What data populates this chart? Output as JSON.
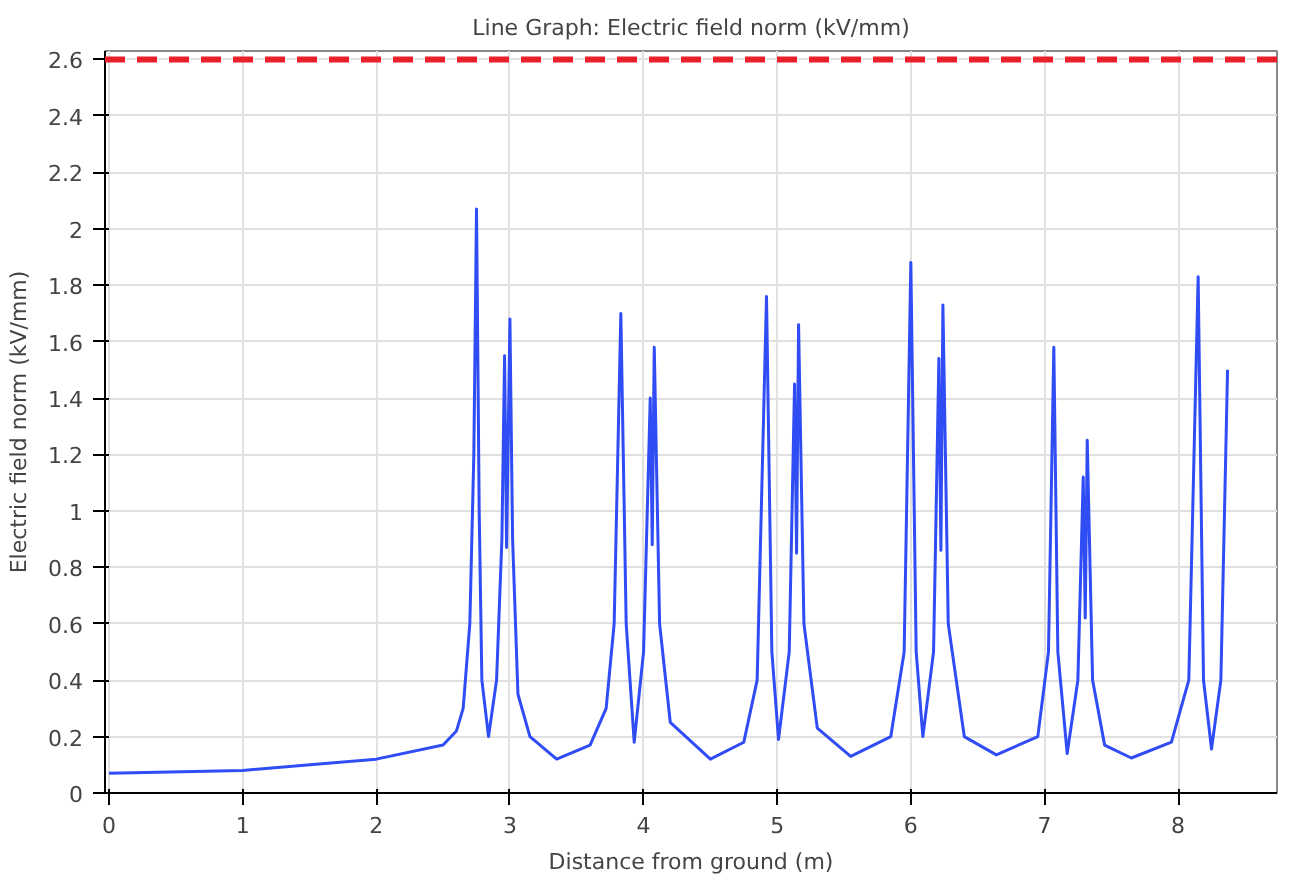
{
  "chart_data": {
    "type": "line",
    "title": "Line Graph: Electric field norm (kV/mm)",
    "xlabel": "Distance from ground (m)",
    "ylabel": "Electric field norm (kV/mm)",
    "xlim": [
      -0.03,
      8.74
    ],
    "ylim": [
      0,
      2.63
    ],
    "xticks": [
      0,
      1,
      2,
      3,
      4,
      5,
      6,
      7,
      8
    ],
    "yticks": [
      0,
      0.2,
      0.4,
      0.6,
      0.8,
      1,
      1.2,
      1.4,
      1.6,
      1.8,
      2,
      2.2,
      2.4,
      2.6
    ],
    "grid": true,
    "line_style": "solid",
    "ref_lines": [
      {
        "axis": "y",
        "value": 2.6,
        "color": "#e8202a",
        "line_style": "dashed"
      }
    ],
    "series": [
      {
        "color": "#2f4cf5",
        "x": [
          0,
          1,
          2,
          2.5,
          2.6,
          2.65,
          2.7,
          2.73,
          2.75,
          2.77,
          2.79,
          2.84,
          2.9,
          2.94,
          2.96,
          2.975,
          3.0,
          3.02,
          3.06,
          3.15,
          3.35,
          3.6,
          3.72,
          3.78,
          3.83,
          3.87,
          3.93,
          4.0,
          4.05,
          4.065,
          4.08,
          4.12,
          4.2,
          4.5,
          4.75,
          4.85,
          4.92,
          4.96,
          5.01,
          5.09,
          5.13,
          5.145,
          5.16,
          5.2,
          5.3,
          5.55,
          5.85,
          5.95,
          6.0,
          6.04,
          6.09,
          6.17,
          6.21,
          6.225,
          6.24,
          6.28,
          6.4,
          6.64,
          6.95,
          7.03,
          7.07,
          7.1,
          7.17,
          7.25,
          7.29,
          7.305,
          7.32,
          7.36,
          7.45,
          7.65,
          7.95,
          8.08,
          8.15,
          8.19,
          8.25,
          8.32,
          8.37
        ],
        "values": [
          0.07,
          0.08,
          0.12,
          0.17,
          0.22,
          0.3,
          0.6,
          1.2,
          2.07,
          1.0,
          0.4,
          0.2,
          0.4,
          0.9,
          1.55,
          0.87,
          1.68,
          0.9,
          0.35,
          0.2,
          0.12,
          0.17,
          0.3,
          0.6,
          1.7,
          0.6,
          0.18,
          0.5,
          1.4,
          0.88,
          1.58,
          0.6,
          0.25,
          0.12,
          0.18,
          0.4,
          1.76,
          0.5,
          0.19,
          0.5,
          1.45,
          0.85,
          1.66,
          0.6,
          0.23,
          0.13,
          0.2,
          0.5,
          1.88,
          0.5,
          0.2,
          0.5,
          1.54,
          0.86,
          1.73,
          0.6,
          0.2,
          0.135,
          0.2,
          0.5,
          1.58,
          0.5,
          0.14,
          0.4,
          1.12,
          0.62,
          1.25,
          0.4,
          0.17,
          0.124,
          0.18,
          0.4,
          1.83,
          0.4,
          0.156,
          0.4,
          1.5
        ]
      }
    ]
  }
}
